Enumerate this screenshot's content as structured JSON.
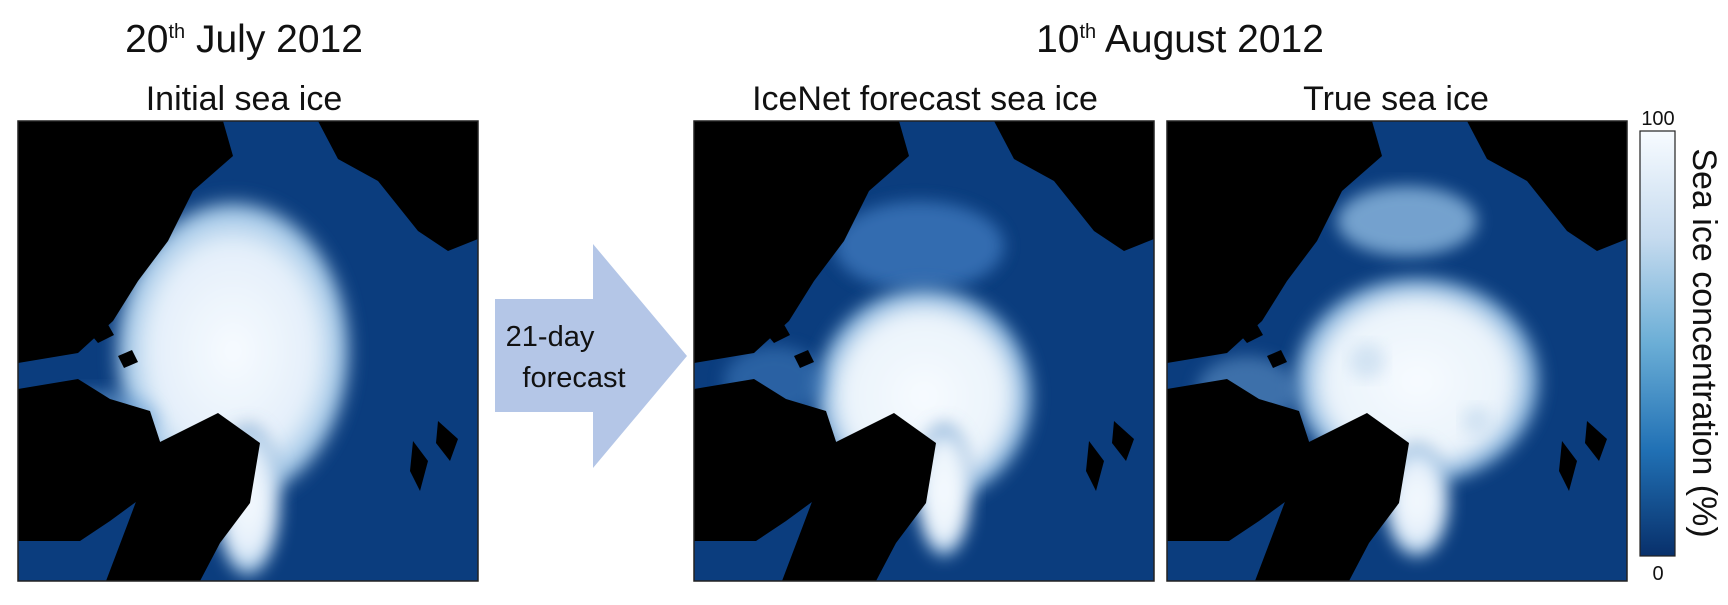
{
  "left_header": {
    "date": {
      "day": "20",
      "suffix": "th",
      "rest": " July 2012"
    },
    "panel_title": "Initial sea ice"
  },
  "arrow": {
    "line1": "21-day",
    "line2": "forecast"
  },
  "right_header": {
    "date": {
      "day": "10",
      "suffix": "th",
      "rest": " August 2012"
    },
    "panels": [
      "IceNet forecast sea ice",
      "True sea ice"
    ]
  },
  "colorbar": {
    "label": "Sea ice concentration (%)",
    "max": 100,
    "min": 0
  }
}
